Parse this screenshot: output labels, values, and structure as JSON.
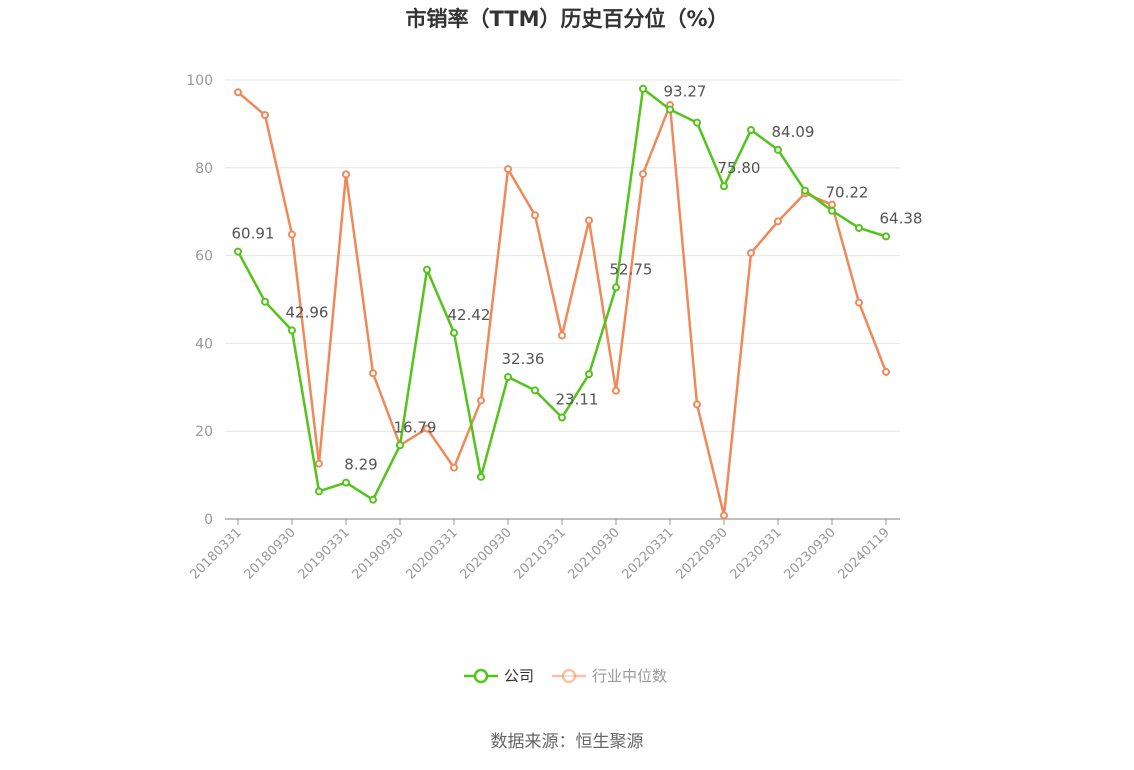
{
  "chart_data": {
    "type": "line",
    "title": "市销率（TTM）历史百分位（%）",
    "source": "数据来源：恒生聚源",
    "ylim": [
      0,
      100
    ],
    "yticks": [
      0,
      20,
      40,
      60,
      80,
      100
    ],
    "grid": true,
    "legend_position": "bottom-center",
    "x": [
      "20180331",
      "20180630",
      "20180930",
      "20181231",
      "20190331",
      "20190630",
      "20190930",
      "20191231",
      "20200331",
      "20200630",
      "20200930",
      "20201231",
      "20210331",
      "20210630",
      "20210930",
      "20211231",
      "20220331",
      "20220630",
      "20220930",
      "20221231",
      "20230331",
      "20230630",
      "20230930",
      "20231231",
      "20240119"
    ],
    "x_tick_labels": [
      "20180331",
      "20180930",
      "20190331",
      "20190930",
      "20200331",
      "20200930",
      "20210331",
      "20210930",
      "20220331",
      "20220930",
      "20230331",
      "20230930",
      "20240119"
    ],
    "series": [
      {
        "name": "公司",
        "color": "#52c41a",
        "values": [
          60.91,
          49.5,
          42.96,
          6.3,
          8.29,
          4.4,
          16.79,
          56.8,
          42.42,
          9.6,
          32.36,
          29.3,
          23.11,
          33.0,
          52.75,
          98.0,
          93.27,
          90.3,
          75.8,
          88.6,
          84.09,
          74.8,
          70.22,
          66.3,
          64.38
        ],
        "labeled": [
          {
            "index": 0,
            "text": "60.91"
          },
          {
            "index": 2,
            "text": "42.96"
          },
          {
            "index": 4,
            "text": "8.29"
          },
          {
            "index": 6,
            "text": "16.79"
          },
          {
            "index": 8,
            "text": "42.42"
          },
          {
            "index": 10,
            "text": "32.36"
          },
          {
            "index": 12,
            "text": "23.11"
          },
          {
            "index": 14,
            "text": "52.75"
          },
          {
            "index": 16,
            "text": "93.27"
          },
          {
            "index": 18,
            "text": "75.80"
          },
          {
            "index": 20,
            "text": "84.09"
          },
          {
            "index": 22,
            "text": "70.22"
          },
          {
            "index": 24,
            "text": "64.38"
          }
        ]
      },
      {
        "name": "行业中位数",
        "color": "#f0895a",
        "values": [
          97.2,
          92.0,
          64.8,
          12.6,
          78.5,
          33.2,
          16.8,
          20.6,
          11.7,
          27.0,
          79.7,
          69.2,
          41.8,
          68.0,
          29.2,
          78.6,
          94.3,
          26.1,
          0.8,
          60.6,
          67.8,
          74.2,
          71.6,
          49.3,
          33.5
        ]
      }
    ]
  }
}
